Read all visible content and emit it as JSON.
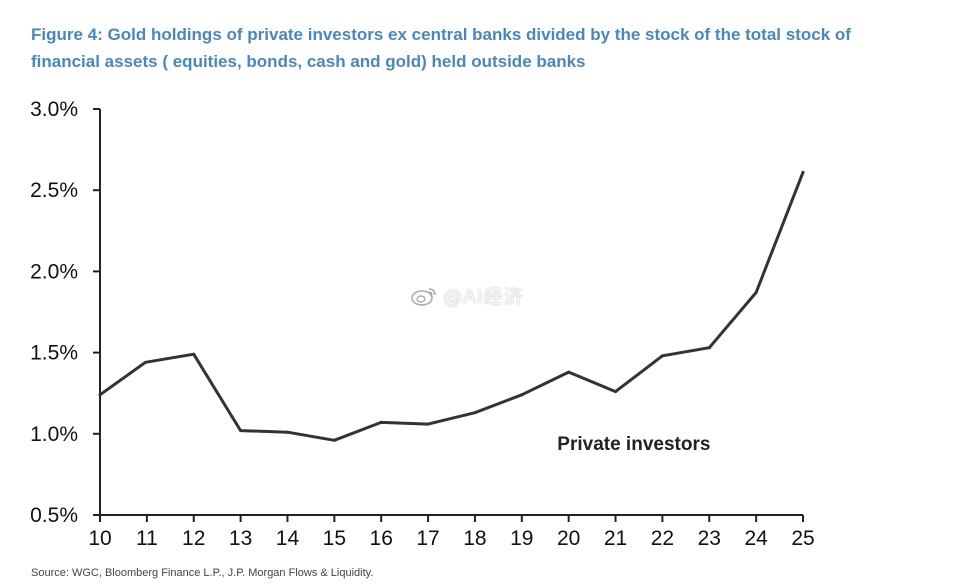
{
  "title": {
    "line1": "Figure 4: Gold holdings of private investors ex central banks divided by the stock of the total stock of",
    "line2": "financial assets ( equities, bonds, cash and gold) held outside banks"
  },
  "source": "Source: WGC, Bloomberg Finance L.P., J.P. Morgan Flows & Liquidity.",
  "watermark": "@AI经济",
  "chart_data": {
    "type": "line",
    "title": "Figure 4: Gold holdings of private investors ex central banks divided by the stock of the total stock of financial assets ( equities, bonds, cash and gold) held outside banks",
    "xlabel": "",
    "ylabel": "",
    "x": [
      10,
      10.97,
      12,
      13,
      14,
      15,
      16,
      17,
      18,
      19,
      20,
      21,
      22,
      23,
      24,
      25
    ],
    "x_ticks": [
      "10",
      "11",
      "12",
      "13",
      "14",
      "15",
      "16",
      "17",
      "18",
      "19",
      "20",
      "21",
      "22",
      "23",
      "24",
      "25"
    ],
    "y_ticks": [
      "0.5%",
      "1.0%",
      "1.5%",
      "2.0%",
      "2.5%",
      "3.0%"
    ],
    "y_tick_values": [
      0.5,
      1.0,
      1.5,
      2.0,
      2.5,
      3.0
    ],
    "xlim": [
      10,
      25
    ],
    "ylim": [
      0.5,
      3.0
    ],
    "grid": false,
    "legend": "none",
    "series": [
      {
        "name": "Private investors",
        "color": "#333333",
        "values": [
          1.24,
          1.44,
          1.49,
          1.02,
          1.01,
          0.96,
          1.07,
          1.06,
          1.13,
          1.24,
          1.38,
          1.26,
          1.48,
          1.53,
          1.87,
          2.61
        ]
      }
    ],
    "annotations": [
      {
        "text": "Private investors",
        "x": 19.8,
        "y": 0.98
      }
    ]
  }
}
